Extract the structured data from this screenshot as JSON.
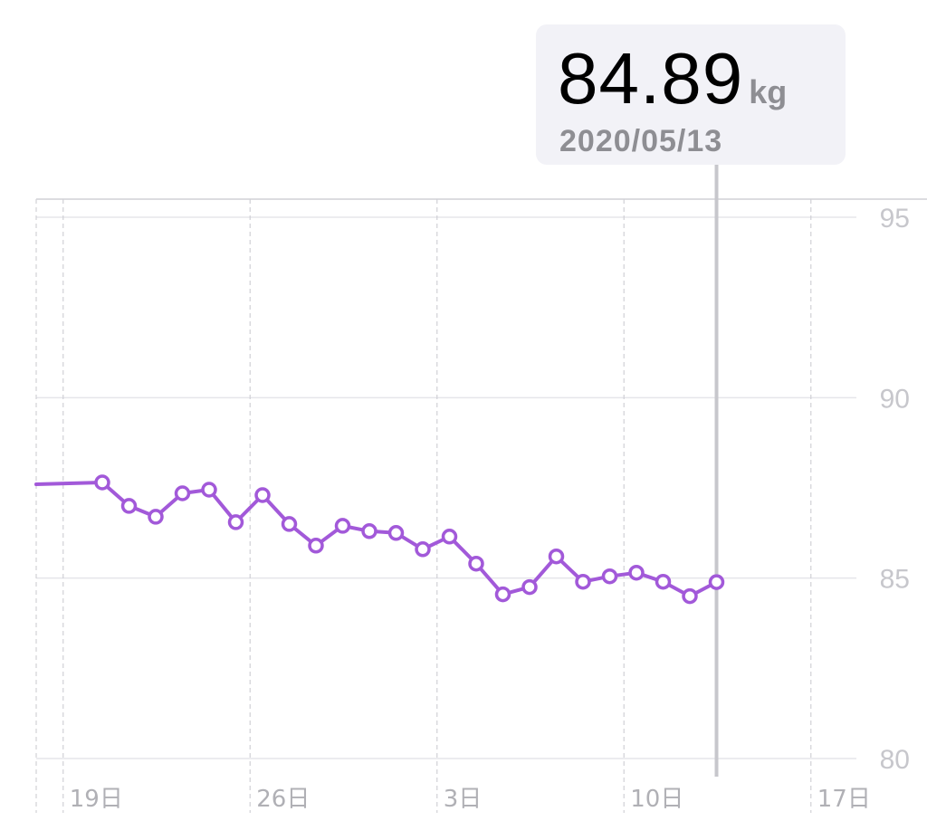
{
  "selection": {
    "value": "84.89",
    "unit": "kg",
    "date": "2020/05/13"
  },
  "colors": {
    "line": "#a259d9",
    "grid": "#e5e5ea",
    "cursor": "#c7c7cc",
    "tooltip_bg": "#f2f2f7"
  },
  "chart_data": {
    "type": "line",
    "title": "",
    "xlabel": "",
    "ylabel": "",
    "ylim": [
      80,
      95
    ],
    "xlim": [
      "2020-04-17",
      "2020-05-20"
    ],
    "y_ticks": [
      "95",
      "90",
      "85",
      "80"
    ],
    "x_tick_labels": [
      {
        "date": "2020-04-19",
        "label": "19日"
      },
      {
        "date": "2020-04-26",
        "label": "26日"
      },
      {
        "date": "2020-05-03",
        "label": "3日"
      },
      {
        "date": "2020-05-10",
        "label": "10日"
      },
      {
        "date": "2020-05-17",
        "label": "17日"
      }
    ],
    "grid": true,
    "selected_date": "2020-05-13",
    "leading_value": 87.6,
    "series": [
      {
        "points": [
          {
            "x": "2020-04-20",
            "y": 87.65
          },
          {
            "x": "2020-04-21",
            "y": 87.0
          },
          {
            "x": "2020-04-22",
            "y": 86.7
          },
          {
            "x": "2020-04-23",
            "y": 87.35
          },
          {
            "x": "2020-04-24",
            "y": 87.45
          },
          {
            "x": "2020-04-25",
            "y": 86.55
          },
          {
            "x": "2020-04-26",
            "y": 87.3
          },
          {
            "x": "2020-04-27",
            "y": 86.5
          },
          {
            "x": "2020-04-28",
            "y": 85.9
          },
          {
            "x": "2020-04-29",
            "y": 86.45
          },
          {
            "x": "2020-04-30",
            "y": 86.3
          },
          {
            "x": "2020-05-01",
            "y": 86.25
          },
          {
            "x": "2020-05-02",
            "y": 85.8
          },
          {
            "x": "2020-05-03",
            "y": 86.15
          },
          {
            "x": "2020-05-04",
            "y": 85.4
          },
          {
            "x": "2020-05-05",
            "y": 84.55
          },
          {
            "x": "2020-05-06",
            "y": 84.75
          },
          {
            "x": "2020-05-07",
            "y": 85.6
          },
          {
            "x": "2020-05-08",
            "y": 84.9
          },
          {
            "x": "2020-05-09",
            "y": 85.05
          },
          {
            "x": "2020-05-10",
            "y": 85.15
          },
          {
            "x": "2020-05-11",
            "y": 84.9
          },
          {
            "x": "2020-05-12",
            "y": 84.5
          },
          {
            "x": "2020-05-13",
            "y": 84.89
          }
        ]
      }
    ]
  }
}
